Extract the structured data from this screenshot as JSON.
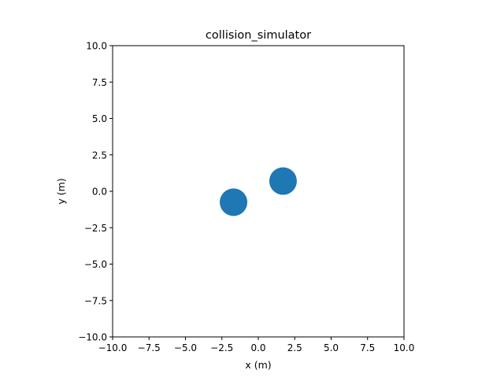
{
  "chart_data": {
    "type": "scatter",
    "title": "collision_simulator",
    "xlabel": "x (m)",
    "ylabel": "y (m)",
    "xlim": [
      -10,
      10
    ],
    "ylim": [
      -10,
      10
    ],
    "xticks": [
      "−10.0",
      "−7.5",
      "−5.0",
      "−2.5",
      "0.0",
      "2.5",
      "5.0",
      "7.5",
      "10.0"
    ],
    "yticks": [
      "−10.0",
      "−7.5",
      "−5.0",
      "−2.5",
      "0.0",
      "2.5",
      "5.0",
      "7.5",
      "10.0"
    ],
    "tick_values": [
      -10,
      -7.5,
      -5,
      -2.5,
      0,
      2.5,
      5,
      7.5,
      10
    ],
    "grid": false,
    "marker_color": "#1f77b4",
    "points": [
      {
        "x": -1.7,
        "y": -0.75
      },
      {
        "x": 1.7,
        "y": 0.7
      }
    ]
  }
}
